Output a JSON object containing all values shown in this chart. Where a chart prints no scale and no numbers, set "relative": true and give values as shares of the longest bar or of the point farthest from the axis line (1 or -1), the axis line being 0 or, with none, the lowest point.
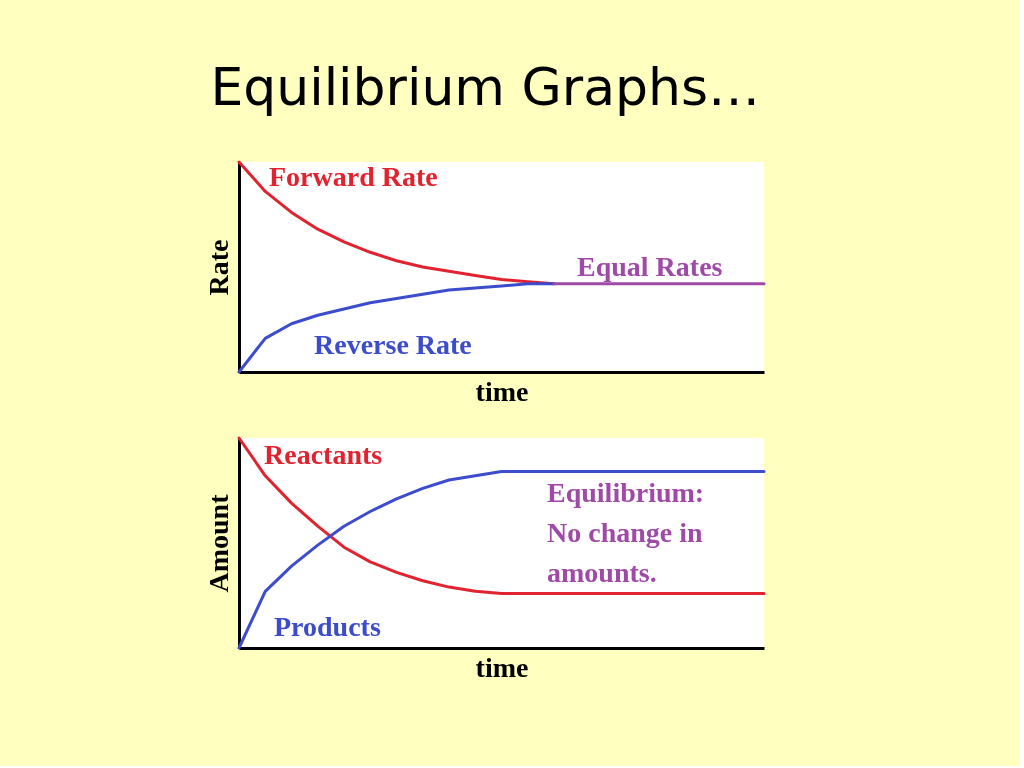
{
  "chart_data": [
    {
      "type": "line",
      "title": "Equilibrium Graphs…",
      "xlabel": "time",
      "ylabel": "Rate",
      "relative": true,
      "grid": false,
      "marker": "none",
      "line_style": "solid",
      "categories": [
        null,
        null,
        null,
        null,
        null,
        null,
        null,
        null,
        null,
        null,
        null,
        null,
        null,
        null,
        null,
        null,
        null,
        null,
        null,
        null,
        null
      ],
      "series": [
        {
          "name": "Forward Rate",
          "color": "#e0232e",
          "values": [
            1,
            0.86,
            0.76,
            0.68,
            0.62,
            0.57,
            0.53,
            0.5,
            0.48,
            0.46,
            0.44,
            0.43,
            0.42,
            null,
            null,
            null,
            null,
            null,
            null,
            null,
            null
          ]
        },
        {
          "name": "Reverse Rate",
          "color": "#3c4ccc",
          "values": [
            0,
            0.16,
            0.23,
            0.27,
            0.3,
            0.33,
            0.35,
            0.37,
            0.39,
            0.4,
            0.41,
            0.42,
            0.42,
            null,
            null,
            null,
            null,
            null,
            null,
            null,
            null
          ]
        },
        {
          "name": "Equal Rates",
          "color": "#a04aa8",
          "values": [
            null,
            null,
            null,
            null,
            null,
            null,
            null,
            null,
            null,
            null,
            null,
            null,
            0.42,
            0.42,
            0.42,
            0.42,
            0.42,
            0.42,
            0.42,
            0.42,
            0.42
          ]
        }
      ]
    },
    {
      "type": "line",
      "xlabel": "time",
      "ylabel": "Amount",
      "relative": true,
      "grid": false,
      "marker": "none",
      "line_style": "solid",
      "categories": [
        null,
        null,
        null,
        null,
        null,
        null,
        null,
        null,
        null,
        null,
        null,
        null,
        null,
        null,
        null,
        null,
        null,
        null,
        null,
        null,
        null
      ],
      "series": [
        {
          "name": "Reactants",
          "color": "#e0232e",
          "values": [
            1,
            0.82,
            0.69,
            0.58,
            0.48,
            0.41,
            0.36,
            0.32,
            0.29,
            0.27,
            0.26,
            0.26,
            0.26,
            0.26,
            0.26,
            0.26,
            0.26,
            0.26,
            0.26,
            0.26,
            0.26
          ]
        },
        {
          "name": "Products",
          "color": "#3c4ccc",
          "values": [
            0,
            0.27,
            0.39,
            0.49,
            0.58,
            0.65,
            0.71,
            0.76,
            0.8,
            0.82,
            0.84,
            0.84,
            0.84,
            0.84,
            0.84,
            0.84,
            0.84,
            0.84,
            0.84,
            0.84,
            0.84
          ]
        }
      ],
      "annotations": [
        "Equilibrium:\nNo change in\namounts."
      ]
    }
  ]
}
